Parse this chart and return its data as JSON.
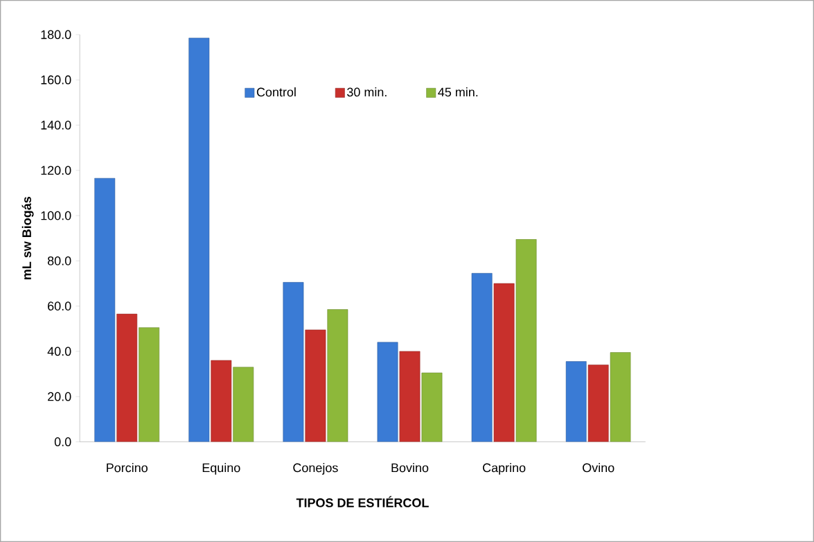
{
  "chart_data": {
    "type": "bar",
    "xlabel": "TIPOS DE ESTIÉRCOL",
    "ylabel": "mL sw Biogás",
    "categories": [
      "Porcino",
      "Equino",
      "Conejos",
      "Bovino",
      "Caprino",
      "Ovino"
    ],
    "series": [
      {
        "name": "Control",
        "color": "#3a7bd5",
        "values": [
          116.5,
          178.5,
          70.5,
          44.0,
          74.5,
          35.5
        ]
      },
      {
        "name": "30 min.",
        "color": "#c8302c",
        "values": [
          56.5,
          36.0,
          49.5,
          40.0,
          70.0,
          34.0
        ]
      },
      {
        "name": "45 min.",
        "color": "#8db83a",
        "values": [
          50.5,
          33.0,
          58.5,
          30.5,
          89.5,
          39.5
        ]
      }
    ],
    "ylim": [
      0,
      180
    ],
    "yticks": [
      {
        "value": 0,
        "label": "0.0"
      },
      {
        "value": 20,
        "label": "20.0"
      },
      {
        "value": 40,
        "label": "40.0"
      },
      {
        "value": 60,
        "label": "60.0"
      },
      {
        "value": 80,
        "label": "80.0"
      },
      {
        "value": 100,
        "label": "100.0"
      },
      {
        "value": 120,
        "label": "120.0"
      },
      {
        "value": 140,
        "label": "140.0"
      },
      {
        "value": 160,
        "label": "160.0"
      },
      {
        "value": 180,
        "label": "180.0"
      }
    ],
    "grid": false,
    "legend": "top"
  }
}
